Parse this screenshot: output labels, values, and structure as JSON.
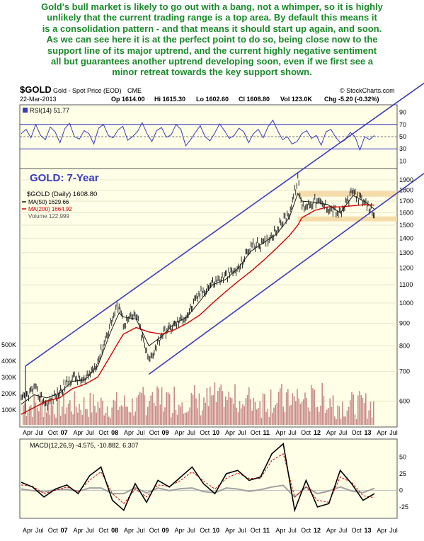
{
  "commentary": [
    "Gold's bull market is likely to go out with a bang, not a whimper, so it is highly",
    "unlikely that the current trading range is a top area. By default this means it",
    "is a consolidation pattern - and that means it should start up again, and soon.",
    "As we can see here it is at the perfect point to do so, being close now to the",
    "support line of its major uptrend, and the current highly negative sentiment",
    "all but guarantees another uptrend developing soon, even if we first see a",
    "minor retreat towards the key support shown."
  ],
  "header": {
    "symbol": "$GOLD",
    "name": "Gold - Spot Price (EOD)",
    "exchange": "CME",
    "watermark": "© StockCharts.com",
    "date": "22-Mar-2013",
    "op": "Op 1614.00",
    "hi": "Hi 1615.30",
    "lo": "Lo 1602.60",
    "cl": "Cl 1608.80",
    "vol": "Vol 123.0K",
    "chg": "Chg -5.20 (-0.32%)"
  },
  "colors": {
    "channel": "#3a3ac0",
    "ma50": "#1a1a1a",
    "ma200": "#d00000",
    "volume": "#c88a8a",
    "support_band": "#f5d6a0",
    "panel_bg": "#ffffe8",
    "macd_hist": "#a0a0a0",
    "headline": "#1a8a2a"
  },
  "chart_data": [
    {
      "type": "line",
      "panel": "rsi",
      "legend": "RSI(14) 51.77",
      "ylim": [
        0,
        100
      ],
      "yticks": [
        10,
        30,
        50,
        70,
        90
      ],
      "reference_lines": [
        30,
        50,
        70
      ],
      "series": [
        {
          "name": "RSI(14)",
          "values": [
            55,
            62,
            48,
            70,
            52,
            45,
            66,
            58,
            40,
            63,
            72,
            50,
            46,
            60,
            55,
            38,
            64,
            70,
            52,
            48,
            61,
            67,
            44,
            50,
            58,
            73,
            55,
            42,
            60,
            65,
            49,
            53,
            70,
            62,
            35,
            45,
            57,
            68,
            50,
            43,
            56,
            71,
            60,
            47,
            52,
            64,
            58,
            40,
            55,
            62,
            48,
            66,
            77,
            60,
            45,
            50,
            38,
            42,
            55,
            60,
            47,
            52,
            36,
            58,
            62,
            49,
            40,
            45,
            57,
            50,
            28,
            50,
            45,
            52
          ]
        }
      ]
    },
    {
      "type": "line",
      "panel": "price",
      "title": "GOLD: 7-Year",
      "legend": [
        "$GOLD (Daily) 1608.80",
        "MA(50) 1629.66",
        "MA(200) 1664.92",
        "Volume 122,999"
      ],
      "y_scale": "log",
      "ylim": [
        530,
        2000
      ],
      "yticks": [
        600,
        700,
        800,
        900,
        1000,
        1100,
        1200,
        1300,
        1400,
        1500,
        1600,
        1700,
        1800,
        1900
      ],
      "volume_ticks": [
        "100K",
        "200K",
        "300K",
        "400K",
        "500K"
      ],
      "x_dates": [
        "2006-04",
        "2006-07",
        "2006-10",
        "2007-01",
        "2007-04",
        "2007-07",
        "2007-10",
        "2008-01",
        "2008-03",
        "2008-04",
        "2008-07",
        "2008-10",
        "2009-01",
        "2009-04",
        "2009-07",
        "2009-10",
        "2010-01",
        "2010-04",
        "2010-07",
        "2010-10",
        "2011-01",
        "2011-04",
        "2011-07",
        "2011-09",
        "2011-10",
        "2012-01",
        "2012-04",
        "2012-07",
        "2012-10",
        "2013-01",
        "2013-03"
      ],
      "series": [
        {
          "name": "$GOLD",
          "values": [
            600,
            640,
            590,
            630,
            680,
            665,
            740,
            900,
            1000,
            900,
            940,
            740,
            850,
            890,
            940,
            1050,
            1110,
            1150,
            1190,
            1350,
            1360,
            1470,
            1600,
            1900,
            1650,
            1700,
            1650,
            1590,
            1790,
            1660,
            1608
          ]
        },
        {
          "name": "MA(50)",
          "values": [
            590,
            620,
            610,
            625,
            665,
            670,
            720,
            860,
            950,
            930,
            920,
            800,
            840,
            900,
            930,
            1010,
            1100,
            1130,
            1200,
            1310,
            1370,
            1430,
            1560,
            1770,
            1700,
            1690,
            1670,
            1600,
            1750,
            1690,
            1630
          ]
        },
        {
          "name": "MA(200)",
          "values": [
            560,
            580,
            600,
            610,
            640,
            655,
            680,
            760,
            820,
            850,
            880,
            860,
            850,
            870,
            900,
            940,
            1000,
            1060,
            1120,
            1180,
            1250,
            1330,
            1420,
            1500,
            1560,
            1620,
            1650,
            1650,
            1660,
            1670,
            1665
          ]
        }
      ],
      "channel_lines": [
        {
          "name": "upper",
          "points": [
            [
              "2006-05",
              720
            ],
            [
              "2013-05",
              2700
            ]
          ]
        },
        {
          "name": "lower",
          "points": [
            [
              "2008-10",
              690
            ],
            [
              "2013-05",
              1680
            ]
          ]
        }
      ],
      "support_bands": [
        [
          1740,
          1790
        ],
        [
          1530,
          1570
        ]
      ]
    },
    {
      "type": "line",
      "panel": "macd",
      "legend": "MACD(12,26,9) -4.575, -10.882, 6.307",
      "ylim": [
        -40,
        75
      ],
      "yticks": [
        -25,
        0,
        25,
        50
      ],
      "series": [
        {
          "name": "MACD",
          "values": [
            12,
            5,
            -10,
            2,
            8,
            -5,
            22,
            35,
            -15,
            -30,
            10,
            -18,
            15,
            5,
            20,
            35,
            10,
            -5,
            25,
            30,
            15,
            20,
            55,
            70,
            -30,
            15,
            -25,
            -20,
            30,
            10,
            -15,
            -5
          ]
        },
        {
          "name": "Signal",
          "values": [
            8,
            6,
            -5,
            0,
            5,
            -2,
            15,
            28,
            -5,
            -20,
            2,
            -10,
            8,
            6,
            15,
            28,
            14,
            2,
            18,
            26,
            18,
            18,
            45,
            55,
            -10,
            5,
            -15,
            -18,
            20,
            12,
            -8,
            -11
          ]
        }
      ]
    }
  ],
  "x_axis": {
    "labels": [
      "Apr",
      "Jul",
      "Oct",
      "07",
      "Apr",
      "Jul",
      "Oct",
      "08",
      "Apr",
      "Jul",
      "Oct",
      "09",
      "Apr",
      "Jul",
      "Oct",
      "10",
      "Apr",
      "Jul",
      "Oct",
      "11",
      "Apr",
      "Jul",
      "Oct",
      "12",
      "Apr",
      "Jul",
      "Oct",
      "13",
      "Apr",
      "Jul"
    ],
    "year_labels": [
      "07",
      "08",
      "09",
      "10",
      "11",
      "12",
      "13"
    ]
  }
}
